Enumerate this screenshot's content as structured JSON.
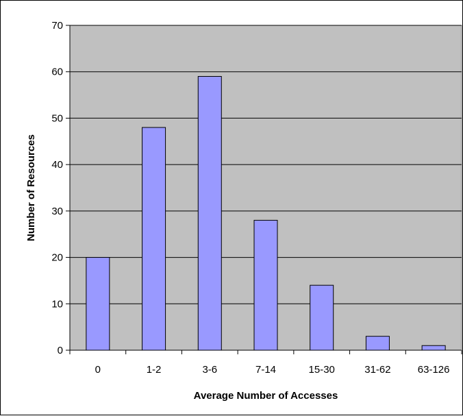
{
  "colors": {
    "plot_background": "#c0c0c0",
    "bar_fill": "#9999ff",
    "bar_stroke": "#000000",
    "gridline": "#000000",
    "page_background": "#ffffff"
  },
  "chart_data": {
    "type": "bar",
    "title": "",
    "xlabel": "Average Number of Accesses",
    "ylabel": "Number of Resources",
    "categories": [
      "0",
      "1-2",
      "3-6",
      "7-14",
      "15-30",
      "31-62",
      "63-126"
    ],
    "values": [
      20,
      48,
      59,
      28,
      14,
      3,
      1
    ],
    "ylim": [
      0,
      70
    ],
    "yticks": [
      0,
      10,
      20,
      30,
      40,
      50,
      60,
      70
    ],
    "grid": "horizontal",
    "legend": "none"
  }
}
